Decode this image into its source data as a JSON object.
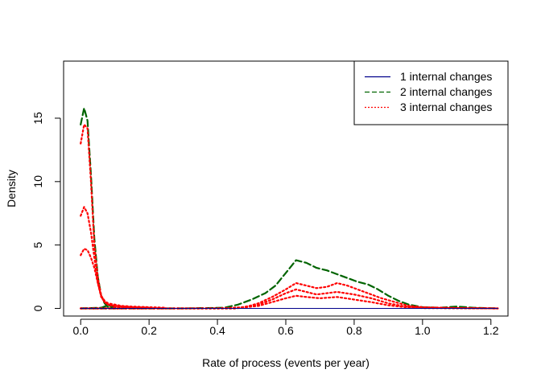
{
  "chart_data": {
    "type": "line",
    "title": "",
    "xlabel": "Rate of process (events per year)",
    "ylabel": "Density",
    "xlim": [
      -0.05,
      1.25
    ],
    "ylim": [
      -0.6,
      19.5
    ],
    "xticks": [
      {
        "value": 0.0,
        "label": "0.0"
      },
      {
        "value": 0.2,
        "label": "0.2"
      },
      {
        "value": 0.4,
        "label": "0.4"
      },
      {
        "value": 0.6,
        "label": "0.6"
      },
      {
        "value": 0.8,
        "label": "0.8"
      },
      {
        "value": 1.0,
        "label": "1.0"
      },
      {
        "value": 1.2,
        "label": "1.2"
      }
    ],
    "yticks": [
      {
        "value": 0,
        "label": "0"
      },
      {
        "value": 5,
        "label": "5"
      },
      {
        "value": 10,
        "label": "10"
      },
      {
        "value": 15,
        "label": "15"
      }
    ],
    "grid": false,
    "legend_position": "top-right",
    "legend": [
      {
        "label": "1 internal changes",
        "color": "#00008B",
        "dash": "solid"
      },
      {
        "label": "2 internal changes",
        "color": "#006400",
        "dash": "dashed"
      },
      {
        "label": "3 internal changes",
        "color": "#FF0000",
        "dash": "dotted"
      }
    ],
    "series": [
      {
        "color": "#006400",
        "dash": "dashed",
        "width": 2.2,
        "x": [
          0,
          0.01,
          0.02,
          0.03,
          0.04,
          0.05,
          0.06,
          0.07,
          0.08,
          0.09,
          0.1
        ],
        "y": [
          14.5,
          15.8,
          14.8,
          10.5,
          5.5,
          2.5,
          1.0,
          0.4,
          0.1,
          0.02,
          0
        ]
      },
      {
        "color": "#006400",
        "dash": "dashed",
        "width": 2.2,
        "x": [
          0,
          0.3,
          0.42,
          0.46,
          0.5,
          0.54,
          0.57,
          0.6,
          0.63,
          0.66,
          0.69,
          0.72,
          0.75,
          0.78,
          0.81,
          0.84,
          0.87,
          0.9,
          0.93,
          0.96,
          1.0,
          1.05,
          1.1,
          1.15,
          1.22
        ],
        "y": [
          0,
          0,
          0.05,
          0.3,
          0.7,
          1.2,
          1.8,
          2.8,
          3.8,
          3.6,
          3.2,
          3.0,
          2.7,
          2.4,
          2.1,
          1.9,
          1.5,
          1.0,
          0.6,
          0.3,
          0.1,
          0.05,
          0.15,
          0.05,
          0
        ]
      },
      {
        "color": "#006400",
        "dash": "dashed",
        "width": 2.2,
        "x": [
          0,
          0.06,
          0.08,
          0.1
        ],
        "y": [
          0,
          0.05,
          0.25,
          0.05
        ]
      },
      {
        "color": "#FF0000",
        "dash": "dotted",
        "width": 2.2,
        "x": [
          0,
          0.01,
          0.02,
          0.03,
          0.04,
          0.05,
          0.06,
          0.07,
          0.08,
          0.1,
          0.12,
          0.15,
          0.2,
          0.25
        ],
        "y": [
          13.0,
          14.5,
          14.2,
          10.0,
          5.0,
          2.4,
          1.0,
          0.6,
          0.4,
          0.3,
          0.2,
          0.15,
          0.1,
          0.05
        ]
      },
      {
        "color": "#FF0000",
        "dash": "dotted",
        "width": 2.2,
        "x": [
          0,
          0.01,
          0.02,
          0.03,
          0.04,
          0.05,
          0.06,
          0.07,
          0.08,
          0.1,
          0.15,
          0.2
        ],
        "y": [
          7.3,
          8.0,
          7.5,
          6.0,
          4.0,
          2.0,
          0.9,
          0.5,
          0.3,
          0.2,
          0.1,
          0.05
        ]
      },
      {
        "color": "#FF0000",
        "dash": "dotted",
        "width": 2.2,
        "x": [
          0,
          0.01,
          0.02,
          0.03,
          0.04,
          0.05,
          0.06,
          0.07,
          0.08,
          0.1,
          0.15,
          0.2
        ],
        "y": [
          4.2,
          4.7,
          4.6,
          4.0,
          3.2,
          2.0,
          1.0,
          0.5,
          0.3,
          0.15,
          0.08,
          0.04
        ]
      },
      {
        "color": "#FF0000",
        "dash": "dotted",
        "width": 2.2,
        "x": [
          0,
          0.4,
          0.48,
          0.52,
          0.56,
          0.6,
          0.63,
          0.66,
          0.69,
          0.72,
          0.75,
          0.78,
          0.81,
          0.84,
          0.88,
          0.92,
          0.96,
          1.0,
          1.1,
          1.22
        ],
        "y": [
          0,
          0,
          0.1,
          0.4,
          0.9,
          1.5,
          2.0,
          1.8,
          1.6,
          1.7,
          2.0,
          1.8,
          1.5,
          1.2,
          0.8,
          0.5,
          0.2,
          0.1,
          0.03,
          0
        ]
      },
      {
        "color": "#FF0000",
        "dash": "dotted",
        "width": 2.2,
        "x": [
          0,
          0.45,
          0.52,
          0.56,
          0.6,
          0.63,
          0.66,
          0.69,
          0.72,
          0.75,
          0.8,
          0.85,
          0.9,
          0.95,
          1.0,
          1.22
        ],
        "y": [
          0,
          0,
          0.3,
          0.7,
          1.2,
          1.5,
          1.3,
          1.1,
          1.2,
          1.3,
          1.1,
          0.8,
          0.4,
          0.15,
          0.05,
          0
        ]
      },
      {
        "color": "#FF0000",
        "dash": "dotted",
        "width": 2.2,
        "x": [
          0,
          0.45,
          0.52,
          0.56,
          0.6,
          0.63,
          0.66,
          0.7,
          0.75,
          0.8,
          0.85,
          0.9,
          0.95,
          1.0,
          1.22
        ],
        "y": [
          0,
          0,
          0.2,
          0.5,
          0.8,
          1.0,
          0.9,
          0.8,
          0.9,
          0.7,
          0.5,
          0.25,
          0.1,
          0.03,
          0
        ]
      },
      {
        "color": "#00008B",
        "dash": "solid",
        "width": 1.0,
        "x": [
          0,
          1.22
        ],
        "y": [
          0,
          0
        ]
      }
    ]
  }
}
